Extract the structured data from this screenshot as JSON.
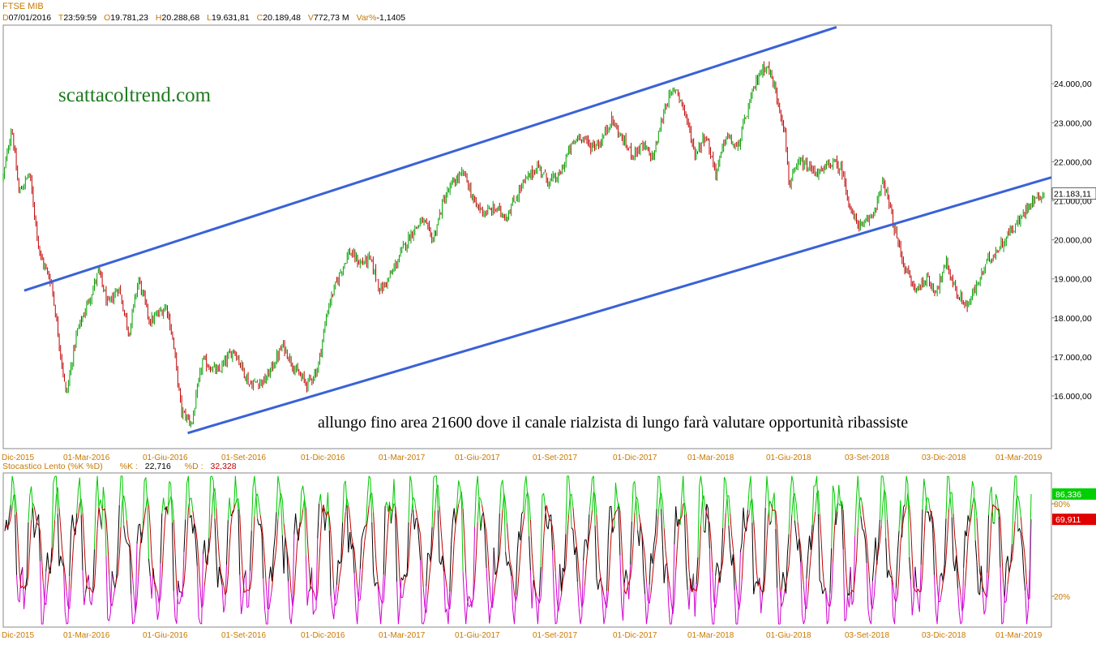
{
  "header": {
    "symbol": "FTSE MIB",
    "fields": [
      {
        "key": "D",
        "value": "07/01/2016"
      },
      {
        "key": "T",
        "value": "23:59:59"
      },
      {
        "key": "O",
        "value": "19.781,23"
      },
      {
        "key": "H",
        "value": "20.288,68"
      },
      {
        "key": "L",
        "value": "19.631,81"
      },
      {
        "key": "C",
        "value": "20.189,48"
      },
      {
        "key": "V",
        "value": "772,73 M"
      },
      {
        "key": "Var%",
        "value": "-1,1405"
      }
    ]
  },
  "watermark": "scattacoltrend.com",
  "annotation": "allungo fino area 21600 dove il canale rialzista di lungo farà valutare opportunità ribassiste",
  "oscillator_header": {
    "name": "Stocastico Lento (%K %D)",
    "k_label": "%K :",
    "k_value": "22,716",
    "d_label": "%D :",
    "d_value": "32,328"
  },
  "colors": {
    "accent_text": "#c87800",
    "channel": "#3a62d6",
    "up_candle": "#00a000",
    "down_candle": "#c00000",
    "k_line": "#000000",
    "d_line": "#c00000",
    "overbought": "#00c800",
    "oversold": "#d000d0",
    "watermark": "#1e7a1e"
  },
  "chart_data": [
    {
      "type": "candlestick",
      "title": "FTSE MIB",
      "x_ticks": [
        "Dic-2015",
        "01-Mar-2016",
        "01-Giu-2016",
        "01-Set-2016",
        "01-Dic-2016",
        "01-Mar-2017",
        "01-Giu-2017",
        "01-Set-2017",
        "01-Dic-2017",
        "01-Mar-2018",
        "01-Giu-2018",
        "03-Set-2018",
        "03-Dic-2018",
        "01-Mar-2019"
      ],
      "y_ticks": [
        "16.000,00",
        "17.000,00",
        "18.000,00",
        "19.000,00",
        "20.000,00",
        "21.000,00",
        "22.000,00",
        "23.000,00",
        "24.000,00"
      ],
      "y_tick_values": [
        16000,
        17000,
        18000,
        19000,
        20000,
        21000,
        22000,
        23000,
        24000
      ],
      "ylim": [
        14650,
        25500
      ],
      "last_price_label": "21.183,11",
      "last_price": 21183.11,
      "price_path": [
        {
          "t": 0.0,
          "v": 21600
        },
        {
          "t": 0.8,
          "v": 22900
        },
        {
          "t": 1.5,
          "v": 21200
        },
        {
          "t": 2.5,
          "v": 21700
        },
        {
          "t": 3.5,
          "v": 19600
        },
        {
          "t": 4.6,
          "v": 18900
        },
        {
          "t": 6.0,
          "v": 16000
        },
        {
          "t": 7.0,
          "v": 17600
        },
        {
          "t": 8.5,
          "v": 18700
        },
        {
          "t": 9.1,
          "v": 19200
        },
        {
          "t": 10.0,
          "v": 18300
        },
        {
          "t": 11.0,
          "v": 18800
        },
        {
          "t": 12.0,
          "v": 17600
        },
        {
          "t": 12.9,
          "v": 19000
        },
        {
          "t": 14.0,
          "v": 17900
        },
        {
          "t": 15.6,
          "v": 18300
        },
        {
          "t": 16.2,
          "v": 17400
        },
        {
          "t": 17.0,
          "v": 15600
        },
        {
          "t": 18.0,
          "v": 15300
        },
        {
          "t": 19.0,
          "v": 16900
        },
        {
          "t": 20.5,
          "v": 16600
        },
        {
          "t": 22.0,
          "v": 17200
        },
        {
          "t": 23.5,
          "v": 16300
        },
        {
          "t": 25.0,
          "v": 16400
        },
        {
          "t": 26.7,
          "v": 17300
        },
        {
          "t": 28.0,
          "v": 16600
        },
        {
          "t": 29.0,
          "v": 16300
        },
        {
          "t": 30.0,
          "v": 16700
        },
        {
          "t": 31.0,
          "v": 18300
        },
        {
          "t": 32.2,
          "v": 19200
        },
        {
          "t": 33.0,
          "v": 19700
        },
        {
          "t": 34.0,
          "v": 19400
        },
        {
          "t": 35.0,
          "v": 19500
        },
        {
          "t": 36.0,
          "v": 18700
        },
        {
          "t": 37.0,
          "v": 19100
        },
        {
          "t": 38.0,
          "v": 19700
        },
        {
          "t": 39.0,
          "v": 20200
        },
        {
          "t": 40.0,
          "v": 20500
        },
        {
          "t": 41.0,
          "v": 20000
        },
        {
          "t": 42.0,
          "v": 21000
        },
        {
          "t": 43.0,
          "v": 21500
        },
        {
          "t": 44.0,
          "v": 21700
        },
        {
          "t": 45.0,
          "v": 20900
        },
        {
          "t": 46.0,
          "v": 20700
        },
        {
          "t": 47.0,
          "v": 20800
        },
        {
          "t": 48.0,
          "v": 20600
        },
        {
          "t": 49.5,
          "v": 21400
        },
        {
          "t": 51.0,
          "v": 21900
        },
        {
          "t": 52.0,
          "v": 21500
        },
        {
          "t": 53.0,
          "v": 21600
        },
        {
          "t": 54.0,
          "v": 22300
        },
        {
          "t": 55.0,
          "v": 22700
        },
        {
          "t": 56.0,
          "v": 22400
        },
        {
          "t": 57.0,
          "v": 22500
        },
        {
          "t": 58.0,
          "v": 23100
        },
        {
          "t": 59.0,
          "v": 22600
        },
        {
          "t": 60.0,
          "v": 22200
        },
        {
          "t": 61.0,
          "v": 22400
        },
        {
          "t": 62.0,
          "v": 22100
        },
        {
          "t": 63.2,
          "v": 23500
        },
        {
          "t": 64.2,
          "v": 23900
        },
        {
          "t": 65.0,
          "v": 23300
        },
        {
          "t": 66.0,
          "v": 22200
        },
        {
          "t": 67.0,
          "v": 22700
        },
        {
          "t": 68.0,
          "v": 21700
        },
        {
          "t": 69.0,
          "v": 22700
        },
        {
          "t": 70.0,
          "v": 22300
        },
        {
          "t": 71.0,
          "v": 23300
        },
        {
          "t": 72.0,
          "v": 24200
        },
        {
          "t": 72.8,
          "v": 24500
        },
        {
          "t": 73.5,
          "v": 24000
        },
        {
          "t": 74.5,
          "v": 22900
        },
        {
          "t": 75.0,
          "v": 21400
        },
        {
          "t": 76.0,
          "v": 22000
        },
        {
          "t": 77.0,
          "v": 21800
        },
        {
          "t": 78.0,
          "v": 21700
        },
        {
          "t": 79.0,
          "v": 22000
        },
        {
          "t": 80.0,
          "v": 21800
        },
        {
          "t": 81.0,
          "v": 20600
        },
        {
          "t": 82.0,
          "v": 20300
        },
        {
          "t": 83.0,
          "v": 20700
        },
        {
          "t": 84.0,
          "v": 21500
        },
        {
          "t": 85.0,
          "v": 20300
        },
        {
          "t": 86.0,
          "v": 19300
        },
        {
          "t": 87.0,
          "v": 18700
        },
        {
          "t": 88.0,
          "v": 19000
        },
        {
          "t": 89.0,
          "v": 18700
        },
        {
          "t": 90.0,
          "v": 19400
        },
        {
          "t": 91.0,
          "v": 18600
        },
        {
          "t": 92.0,
          "v": 18300
        },
        {
          "t": 93.0,
          "v": 18900
        },
        {
          "t": 94.0,
          "v": 19500
        },
        {
          "t": 95.0,
          "v": 19800
        },
        {
          "t": 96.0,
          "v": 20200
        },
        {
          "t": 97.0,
          "v": 20500
        },
        {
          "t": 98.0,
          "v": 21000
        },
        {
          "t": 99.3,
          "v": 21183
        }
      ],
      "trendlines": [
        {
          "name": "",
          "from": {
            "t": 2.0,
            "v": 18700
          },
          "to": {
            "t": 79.5,
            "v": 25450
          }
        },
        {
          "name": "",
          "from": {
            "t": 17.6,
            "v": 15050
          },
          "to": {
            "t": 100.0,
            "v": 21600
          }
        }
      ]
    },
    {
      "type": "line",
      "title": "Stocastico Lento (%K %D)",
      "x_ticks": [
        "Dic-2015",
        "01-Mar-2016",
        "01-Giu-2016",
        "01-Set-2016",
        "01-Dic-2016",
        "01-Mar-2017",
        "01-Giu-2017",
        "01-Set-2017",
        "01-Dic-2017",
        "01-Mar-2018",
        "01-Giu-2018",
        "03-Set-2018",
        "03-Dic-2018",
        "01-Mar-2019"
      ],
      "y_ticks": [
        "80%",
        "20%"
      ],
      "y_tick_values": [
        80,
        20
      ],
      "ylim": [
        0,
        100
      ],
      "levels": [
        80,
        20
      ],
      "series": [
        {
          "name": "%K",
          "last_value_label": "86,336",
          "last_value": 86.336
        },
        {
          "name": "%D",
          "last_value_label": "69,911",
          "last_value": 69.911
        }
      ]
    }
  ]
}
